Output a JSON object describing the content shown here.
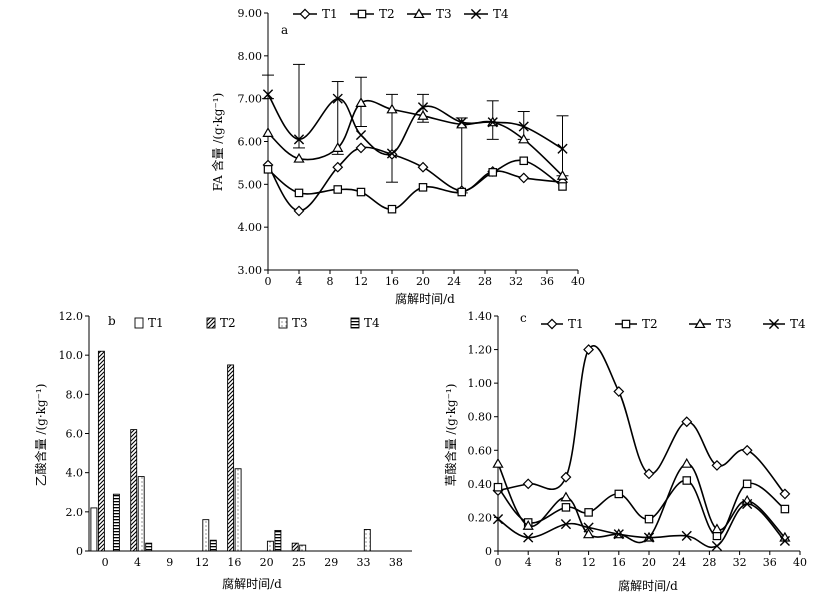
{
  "chart_data": [
    {
      "panel": "a",
      "type": "line",
      "xlabel": "腐解时间/d",
      "ylabel": "FA 含量 /(g·kg⁻¹)",
      "xlim": [
        0,
        40
      ],
      "ylim": [
        3.0,
        9.0
      ],
      "xticks": [
        0,
        4,
        8,
        12,
        16,
        20,
        24,
        28,
        32,
        36,
        40
      ],
      "yticks": [
        "3.00",
        "4.00",
        "5.00",
        "6.00",
        "7.00",
        "8.00",
        "9.00"
      ],
      "x": [
        0,
        4,
        9,
        12,
        16,
        20,
        25,
        29,
        33,
        38
      ],
      "series": [
        {
          "name": "T1",
          "marker": "diamond",
          "values": [
            5.45,
            4.38,
            5.4,
            5.85,
            5.7,
            5.4,
            4.85,
            5.3,
            5.15,
            5.05
          ]
        },
        {
          "name": "T2",
          "marker": "square",
          "values": [
            5.35,
            4.8,
            4.88,
            4.82,
            4.42,
            4.93,
            4.82,
            5.28,
            5.55,
            4.95
          ]
        },
        {
          "name": "T3",
          "marker": "triangle",
          "values": [
            6.2,
            5.6,
            5.85,
            6.9,
            6.75,
            6.6,
            6.4,
            6.45,
            6.05,
            5.2
          ]
        },
        {
          "name": "T4",
          "marker": "cross",
          "values": [
            7.1,
            6.05,
            7.0,
            6.15,
            5.72,
            6.8,
            6.45,
            6.45,
            6.35,
            5.83
          ]
        }
      ]
    },
    {
      "panel": "b",
      "type": "bar",
      "xlabel": "腐解时间/d",
      "ylabel": "乙酸含量 /(g·kg⁻¹)",
      "ylim": [
        0,
        12
      ],
      "yticks": [
        "0",
        "2.0",
        "4.0",
        "6.0",
        "8.0",
        "10.0",
        "12.0"
      ],
      "categories": [
        "0",
        "4",
        "9",
        "12",
        "16",
        "20",
        "25",
        "29",
        "33",
        "38"
      ],
      "series": [
        {
          "name": "T1",
          "pattern": "plain",
          "values": [
            2.2,
            0,
            0,
            0,
            0,
            0,
            0,
            0,
            0,
            0
          ]
        },
        {
          "name": "T2",
          "pattern": "diagonal",
          "values": [
            10.2,
            6.2,
            0,
            0,
            9.5,
            0,
            0.4,
            0,
            0,
            0
          ]
        },
        {
          "name": "T3",
          "pattern": "dotted",
          "values": [
            0,
            3.8,
            0,
            1.6,
            4.2,
            0.5,
            0.3,
            0,
            1.1,
            0
          ]
        },
        {
          "name": "T4",
          "pattern": "horizontal",
          "values": [
            2.9,
            0.4,
            0,
            0.55,
            0,
            1.05,
            0,
            0,
            0,
            0
          ]
        }
      ]
    },
    {
      "panel": "c",
      "type": "line",
      "xlabel": "腐解时间/d",
      "ylabel": "草酸含量 /(g·kg⁻¹)",
      "xlim": [
        0,
        40
      ],
      "ylim": [
        0,
        1.4
      ],
      "xticks": [
        0,
        4,
        8,
        12,
        16,
        20,
        24,
        28,
        32,
        36,
        40
      ],
      "yticks": [
        "0",
        "0.20",
        "0.40",
        "0.60",
        "0.80",
        "1.00",
        "1.20",
        "1.40"
      ],
      "x": [
        0,
        4,
        9,
        12,
        16,
        20,
        25,
        29,
        33,
        38
      ],
      "series": [
        {
          "name": "T1",
          "marker": "diamond",
          "values": [
            0.36,
            0.4,
            0.44,
            1.2,
            0.95,
            0.46,
            0.77,
            0.51,
            0.6,
            0.34
          ]
        },
        {
          "name": "T2",
          "marker": "square",
          "values": [
            0.38,
            0.17,
            0.26,
            0.23,
            0.34,
            0.19,
            0.42,
            0.09,
            0.4,
            0.25
          ]
        },
        {
          "name": "T3",
          "marker": "triangle",
          "values": [
            0.52,
            0.15,
            0.32,
            0.1,
            0.1,
            0.08,
            0.52,
            0.13,
            0.3,
            0.08
          ]
        },
        {
          "name": "T4",
          "marker": "cross",
          "values": [
            0.19,
            0.08,
            0.16,
            0.14,
            0.1,
            0.08,
            0.09,
            0.03,
            0.28,
            0.06
          ]
        }
      ]
    }
  ]
}
